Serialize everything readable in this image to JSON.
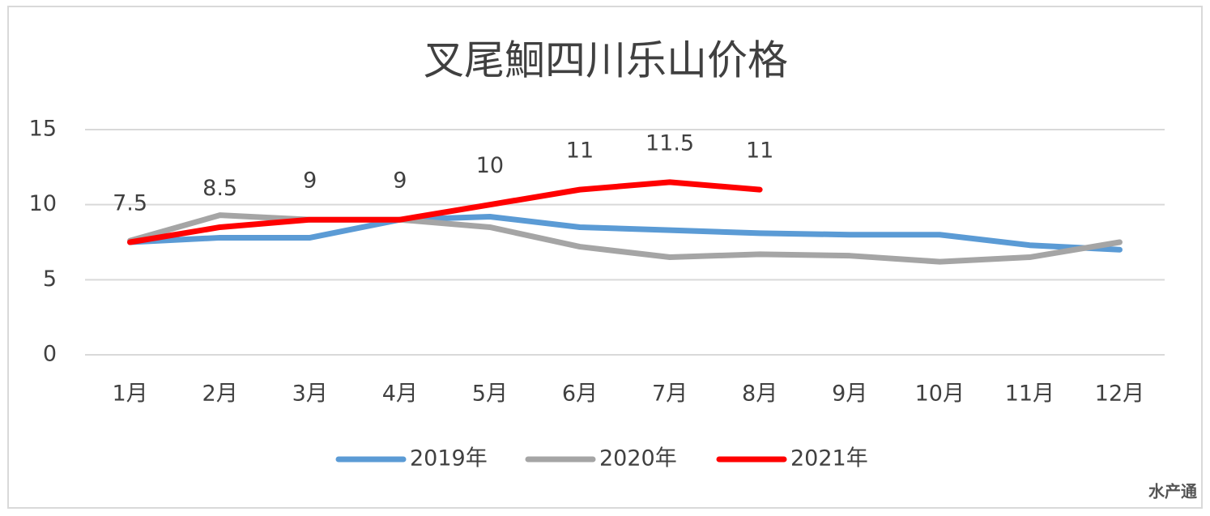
{
  "chart_data": {
    "type": "line",
    "title": "叉尾鮰四川乐山价格",
    "categories": [
      "1月",
      "2月",
      "3月",
      "4月",
      "5月",
      "6月",
      "7月",
      "8月",
      "9月",
      "10月",
      "11月",
      "12月"
    ],
    "series": [
      {
        "name": "2019年",
        "color": "#5b9bd5",
        "show_labels": false,
        "values": [
          7.5,
          7.8,
          7.8,
          9.0,
          9.2,
          8.5,
          8.3,
          8.1,
          8.0,
          8.0,
          7.3,
          7.0
        ]
      },
      {
        "name": "2020年",
        "color": "#a5a5a5",
        "show_labels": false,
        "values": [
          7.6,
          9.3,
          9.0,
          9.0,
          8.5,
          7.2,
          6.5,
          6.7,
          6.6,
          6.2,
          6.5,
          7.5
        ]
      },
      {
        "name": "2021年",
        "color": "#ff0000",
        "show_labels": true,
        "values": [
          7.5,
          8.5,
          9,
          9,
          10,
          11,
          11.5,
          11,
          null,
          null,
          null,
          null
        ]
      }
    ],
    "ylim": [
      0,
      15
    ],
    "yticks": [
      0,
      5,
      10,
      15
    ],
    "grid": true,
    "legend": "bottom",
    "source_mark": "水产通"
  }
}
